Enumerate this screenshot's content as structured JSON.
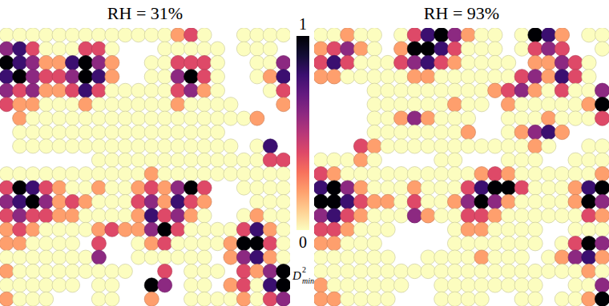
{
  "chart_data": [
    {
      "type": "heatmap",
      "title": "RH = 31%",
      "tick_labels": false,
      "cells": [
        [
          0,
          0,
          0,
          0,
          0,
          0,
          0,
          0,
          0,
          0,
          0,
          0,
          0,
          0.2,
          0.4,
          0,
          null,
          null,
          0,
          0,
          0,
          0
        ],
        [
          0.6,
          0.8,
          0.4,
          0,
          0,
          0,
          0.4,
          0.4,
          0,
          null,
          null,
          null,
          0,
          0,
          0,
          0,
          0,
          null,
          0,
          0,
          0,
          null
        ],
        [
          1,
          0.8,
          0.6,
          0.2,
          0.2,
          0.8,
          1,
          0.6,
          0.2,
          null,
          null,
          0,
          0,
          0.4,
          0.4,
          0.4,
          0,
          null,
          null,
          0,
          0,
          0.6
        ],
        [
          0.8,
          1,
          0.6,
          0.4,
          0.4,
          0.6,
          1,
          0.8,
          0.2,
          null,
          null,
          0,
          0,
          0.6,
          1,
          0.4,
          0,
          null,
          null,
          0,
          0.2,
          0.8
        ],
        [
          0.6,
          0.4,
          0.6,
          0.2,
          0.2,
          0.4,
          0.8,
          0.4,
          0,
          0,
          0,
          0,
          0,
          0.4,
          0.6,
          0.2,
          0,
          null,
          null,
          null,
          0,
          0.4
        ],
        [
          0.4,
          0.2,
          0.2,
          0,
          0,
          0,
          0.2,
          0,
          0,
          0,
          0,
          0,
          0,
          0.2,
          0,
          0,
          0,
          0,
          null,
          null,
          null,
          0.2
        ],
        [
          null,
          0.2,
          0,
          0,
          0,
          0,
          0,
          0,
          0,
          0,
          0,
          0,
          0,
          0,
          0,
          0,
          0,
          0,
          0,
          0.2,
          null,
          null
        ],
        [
          null,
          0,
          0,
          0,
          0,
          0,
          0,
          0,
          0,
          0,
          0,
          0,
          0,
          0,
          0,
          0,
          0,
          null,
          null,
          null,
          null,
          null
        ],
        [
          null,
          0,
          0,
          0,
          0,
          0,
          0,
          0,
          0,
          0,
          0,
          0,
          0,
          0,
          0,
          0,
          0,
          0,
          null,
          0,
          0.8,
          null
        ],
        [
          null,
          null,
          null,
          null,
          null,
          null,
          null,
          0,
          0,
          0,
          0,
          0,
          0,
          0,
          0,
          0,
          0,
          0,
          0,
          0,
          0.4,
          0.4
        ],
        [
          0,
          0,
          0,
          0,
          0,
          0,
          0,
          0,
          0,
          0,
          0,
          0.2,
          0,
          0,
          0,
          0,
          0,
          0,
          0,
          0,
          0,
          0
        ],
        [
          0.4,
          1,
          0.8,
          0.4,
          0.2,
          0,
          0,
          0.2,
          0,
          0,
          0.2,
          0.4,
          0.2,
          0.6,
          1,
          0.4,
          null,
          null,
          0,
          0,
          0,
          0
        ],
        [
          0.6,
          0.8,
          1,
          0.6,
          0.2,
          0.4,
          0.2,
          0,
          0,
          0,
          0.4,
          0.6,
          0.2,
          0.8,
          0.4,
          0.2,
          null,
          null,
          null,
          0,
          0,
          0
        ],
        [
          0.4,
          0.6,
          0.4,
          0.4,
          0.2,
          0.2,
          0,
          0,
          0,
          0,
          0.2,
          0.8,
          0.4,
          0.6,
          0.2,
          0,
          null,
          null,
          0,
          0.2,
          0,
          0
        ],
        [
          0.2,
          0.4,
          0.2,
          0,
          0,
          0,
          0,
          0.2,
          0.4,
          0.2,
          0.2,
          0.6,
          1,
          0.4,
          0,
          0,
          0,
          0,
          0.4,
          0.8,
          0.2,
          0
        ],
        [
          0.2,
          0.2,
          0,
          0,
          0,
          0,
          null,
          0.4,
          null,
          null,
          0,
          0.2,
          0.4,
          0,
          0,
          0,
          0,
          0.2,
          1,
          1,
          0.4,
          0
        ],
        [
          0,
          0,
          0,
          0,
          0,
          0,
          0,
          0.6,
          null,
          null,
          0,
          0,
          0,
          0,
          0,
          0,
          null,
          0.2,
          0.6,
          0.8,
          0.2,
          0
        ],
        [
          0.2,
          0,
          0,
          0,
          0,
          0,
          0,
          0,
          0,
          0,
          null,
          null,
          0.4,
          null,
          0,
          0,
          0,
          null,
          0.4,
          0.2,
          0.6,
          1
        ],
        [
          0,
          0,
          0,
          0,
          0,
          0,
          null,
          0,
          0,
          null,
          null,
          1,
          0.6,
          null,
          0,
          0,
          null,
          0.2,
          0.4,
          0,
          0.8,
          1
        ],
        [
          0.2,
          0,
          0,
          0,
          null,
          null,
          null,
          0,
          0,
          null,
          null,
          0.2,
          null,
          null,
          0,
          0,
          0,
          0,
          0.2,
          0,
          0.4,
          0.6
        ]
      ]
    },
    {
      "type": "heatmap",
      "title": "RH = 93%",
      "tick_labels": false,
      "cells": [
        [
          0,
          0,
          0.2,
          0,
          0,
          null,
          0,
          0.4,
          0.8,
          1,
          0.6,
          0.2,
          0,
          0,
          null,
          0,
          1,
          0.8,
          0.2,
          null,
          0,
          0
        ],
        [
          0.2,
          0.4,
          0.6,
          0.2,
          0,
          null,
          0.2,
          1,
          1,
          0.8,
          0.4,
          0,
          0,
          0,
          null,
          0,
          0.4,
          0.6,
          0.4,
          null,
          null,
          0
        ],
        [
          0.4,
          0.8,
          0.4,
          0,
          0,
          0,
          0.4,
          0.6,
          0.8,
          0.4,
          0.2,
          0,
          0,
          0,
          0,
          null,
          0.2,
          0.2,
          0.6,
          0.4,
          0,
          null
        ],
        [
          0.2,
          0.2,
          0,
          0,
          0,
          0,
          0,
          0.2,
          0.2,
          0,
          0,
          0,
          0,
          0,
          0,
          0.4,
          0.6,
          0.2,
          0.8,
          0.4,
          0,
          null
        ],
        [
          null,
          null,
          null,
          null,
          0,
          0,
          0,
          0,
          0,
          0,
          0,
          0,
          0,
          0.2,
          0.4,
          0.6,
          0.2,
          0,
          0.4,
          0,
          0,
          0.6
        ],
        [
          null,
          null,
          null,
          null,
          0,
          0,
          0,
          0,
          0,
          0,
          0.2,
          0,
          0,
          null,
          0.2,
          0,
          0,
          0,
          0,
          0,
          0.2,
          1
        ],
        [
          null,
          null,
          null,
          null,
          0,
          0,
          0.2,
          0.6,
          0.2,
          0,
          0,
          0,
          null,
          null,
          0,
          0,
          0,
          0.2,
          0,
          0,
          0,
          0.4
        ],
        [
          null,
          null,
          null,
          null,
          0,
          0,
          0,
          0,
          0,
          0,
          0,
          0.2,
          null,
          null,
          0,
          0.2,
          0.6,
          0.8,
          0.2,
          null,
          null,
          null
        ],
        [
          null,
          null,
          null,
          0.4,
          0.2,
          0,
          0,
          0,
          0,
          0,
          0,
          0,
          0,
          0,
          0,
          0,
          0.2,
          0,
          null,
          null,
          0,
          0
        ],
        [
          0,
          0,
          0,
          0.2,
          0,
          null,
          null,
          null,
          null,
          0,
          0,
          null,
          null,
          null,
          0,
          0,
          0,
          null,
          null,
          0,
          0,
          0
        ],
        [
          0.4,
          0.2,
          0,
          0,
          0,
          0,
          0,
          0,
          0,
          0,
          0,
          0,
          0.2,
          0.4,
          0.2,
          0,
          0,
          0,
          0,
          0,
          0,
          0.2
        ],
        [
          0.8,
          1,
          0.6,
          0.2,
          0,
          0,
          0,
          0.2,
          0,
          0,
          0,
          0.4,
          0.8,
          1,
          1,
          0.4,
          0,
          0,
          0,
          0.2,
          0.8,
          1
        ],
        [
          1,
          1,
          0.8,
          0.4,
          0.2,
          0.2,
          0,
          0.4,
          0,
          0,
          0.2,
          0.6,
          1,
          0.6,
          0.2,
          0,
          0,
          0,
          0,
          0.2,
          1,
          0.6
        ],
        [
          0.6,
          0.8,
          0.4,
          0.2,
          0,
          0,
          0,
          0.6,
          0.2,
          0,
          0,
          0.4,
          0.4,
          0.2,
          0,
          0,
          0,
          0,
          0,
          0,
          0.4,
          0.2
        ],
        [
          0.4,
          0.4,
          0.2,
          0,
          0,
          0,
          null,
          null,
          null,
          null,
          0,
          0.2,
          0.2,
          0,
          0,
          0,
          0,
          null,
          null,
          0,
          0,
          0
        ],
        [
          0.2,
          0.2,
          0,
          0,
          0,
          null,
          null,
          null,
          null,
          null,
          0,
          0,
          0,
          0,
          0,
          0,
          0,
          null,
          0,
          0.4,
          1,
          0.6
        ],
        [
          0,
          0,
          0,
          0,
          0,
          0,
          null,
          null,
          0,
          0,
          0,
          0,
          0.2,
          0,
          0,
          0,
          null,
          0,
          0.2,
          0.6,
          0.8,
          0.2
        ],
        [
          0,
          0,
          0,
          0,
          0,
          0,
          0,
          0,
          0,
          0,
          0,
          0,
          0,
          0,
          0,
          0,
          0,
          0,
          0,
          0,
          0.2,
          0
        ],
        [
          0.2,
          0,
          0,
          0,
          0,
          0,
          0,
          null,
          null,
          0,
          0,
          0,
          0,
          0,
          0,
          0,
          0,
          null,
          null,
          0,
          0,
          0.6
        ],
        [
          0.2,
          0.2,
          0,
          0,
          0,
          0,
          null,
          null,
          null,
          0,
          0,
          0,
          0,
          null,
          null,
          0,
          0,
          null,
          0,
          0,
          0.2,
          1
        ]
      ]
    }
  ],
  "colorbar": {
    "range": [
      0,
      1
    ],
    "ticks": [
      0,
      1
    ],
    "label": {
      "text": "D",
      "superscript": "2",
      "subscript": "min"
    }
  }
}
